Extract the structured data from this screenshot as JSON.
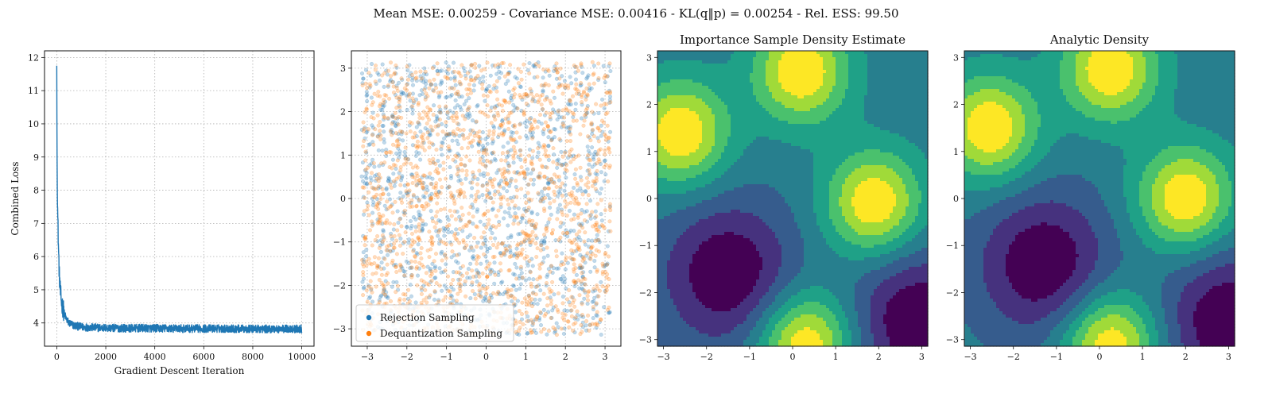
{
  "figure": {
    "suptitle": "Mean MSE: 0.00259 - Covariance MSE: 0.00416 - KL(q‖p) = 0.00254 - Rel. ESS: 99.50"
  },
  "colors": {
    "loss_line": "#1f77b4",
    "rejection": "#1f77b4",
    "dequantization": "#ff7f0e",
    "viridis": [
      "#440154",
      "#46327e",
      "#365c8d",
      "#277f8e",
      "#1fa187",
      "#4ac16d",
      "#a0da39",
      "#fde725"
    ]
  },
  "chart_data": [
    {
      "type": "line",
      "title": "",
      "xlabel": "Gradient Descent Iteration",
      "ylabel": "Combined Loss",
      "xlim": [
        -500,
        10500
      ],
      "ylim": [
        3.3,
        12.2
      ],
      "xticks": [
        "0",
        "2000",
        "4000",
        "6000",
        "8000",
        "10000"
      ],
      "yticks": [
        "4",
        "5",
        "6",
        "7",
        "8",
        "9",
        "10",
        "11",
        "12"
      ],
      "grid": true,
      "series": [
        {
          "x": [
            0,
            10,
            20,
            40,
            60,
            80,
            100,
            150,
            200,
            300,
            400,
            500,
            700,
            1000,
            1500,
            2000,
            3000,
            4000,
            5000,
            6000,
            7000,
            8000,
            9000,
            10000
          ],
          "y": [
            11.75,
            9.5,
            8.3,
            7.2,
            6.5,
            6.0,
            5.5,
            4.9,
            4.6,
            4.3,
            4.1,
            4.0,
            3.92,
            3.88,
            3.86,
            3.85,
            3.84,
            3.84,
            3.83,
            3.83,
            3.83,
            3.82,
            3.82,
            3.82
          ],
          "noise_band": 0.12
        }
      ]
    },
    {
      "type": "scatter",
      "title": "",
      "xlim": [
        -3.4,
        3.4
      ],
      "ylim": [
        -3.4,
        3.4
      ],
      "xticks": [
        "−3",
        "−2",
        "−1",
        "0",
        "1",
        "2",
        "3"
      ],
      "yticks": [
        "−3",
        "−2",
        "−1",
        "0",
        "1",
        "2",
        "3"
      ],
      "grid": true,
      "legend_position": "lower-left",
      "series": [
        {
          "name": "Rejection Sampling",
          "region": [
            -3.14,
            3.14,
            -3.14,
            3.14
          ]
        },
        {
          "name": "Dequantization Sampling",
          "region": [
            -3.14,
            3.14,
            -3.14,
            3.14
          ]
        }
      ]
    },
    {
      "type": "heatmap",
      "title": "Importance Sample Density Estimate",
      "xlim": [
        -3.14,
        3.14
      ],
      "ylim": [
        -3.14,
        3.14
      ],
      "xticks": [
        "−3",
        "−2",
        "−1",
        "0",
        "1",
        "2",
        "3"
      ],
      "yticks": [
        "−3",
        "−2",
        "−1",
        "0",
        "1",
        "2",
        "3"
      ],
      "levels": 8,
      "colormap": "viridis",
      "peaks_high": [
        [
          0.2,
          2.7
        ],
        [
          -2.6,
          1.4
        ],
        [
          1.9,
          -0.1
        ],
        [
          0.3,
          -3.1
        ]
      ],
      "peaks_low": [
        [
          -1.5,
          -1.6
        ],
        [
          2.9,
          -2.6
        ]
      ]
    },
    {
      "type": "heatmap",
      "title": "Analytic Density",
      "xlim": [
        -3.14,
        3.14
      ],
      "ylim": [
        -3.14,
        3.14
      ],
      "xticks": [
        "−3",
        "−2",
        "−1",
        "0",
        "1",
        "2",
        "3"
      ],
      "yticks": [
        "−3",
        "−2",
        "−1",
        "0",
        "1",
        "2",
        "3"
      ],
      "levels": 8,
      "colormap": "viridis",
      "peaks_high": [
        [
          0.25,
          2.75
        ],
        [
          -2.55,
          1.5
        ],
        [
          2.0,
          0.0
        ],
        [
          0.25,
          -3.1
        ]
      ],
      "peaks_low": [
        [
          -1.3,
          -1.4
        ],
        [
          3.0,
          -2.6
        ]
      ]
    }
  ]
}
